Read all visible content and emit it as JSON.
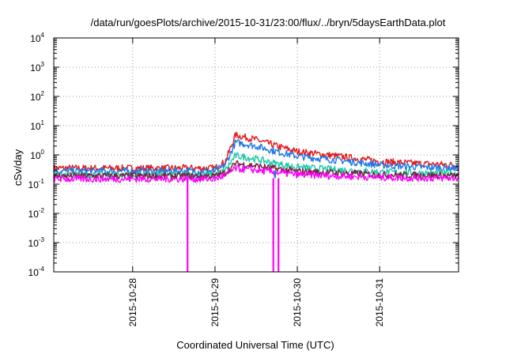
{
  "chart_data": {
    "type": "line",
    "title": "/data/run/goesPlots/archive/2015-10-31/23:00/flux/../bryn/5daysEarthData.plot",
    "xlabel": "Coordinated Universal Time (UTC)",
    "ylabel": "cSv/day",
    "yscale": "log",
    "ylim": [
      0.0001,
      10000
    ],
    "y_ticks": [
      {
        "base": "10",
        "exp": "-4",
        "value": 0.0001
      },
      {
        "base": "10",
        "exp": "-3",
        "value": 0.001
      },
      {
        "base": "10",
        "exp": "-2",
        "value": 0.01
      },
      {
        "base": "10",
        "exp": "-1",
        "value": 0.1
      },
      {
        "base": "10",
        "exp": "0",
        "value": 1
      },
      {
        "base": "10",
        "exp": "1",
        "value": 10
      },
      {
        "base": "10",
        "exp": "2",
        "value": 100
      },
      {
        "base": "10",
        "exp": "3",
        "value": 1000
      },
      {
        "base": "10",
        "exp": "4",
        "value": 10000
      }
    ],
    "xlim": [
      "2015-10-27 01:00",
      "2015-10-31 23:00"
    ],
    "x_ticks": [
      "2015-10-28",
      "2015-10-29",
      "2015-10-30",
      "2015-10-31"
    ],
    "grid": true,
    "legend": "none",
    "series": [
      {
        "color": "#e41a1c",
        "x": [
          "2015-10-27 01:00",
          "2015-10-28 00:00",
          "2015-10-29 00:00",
          "2015-10-29 03:00",
          "2015-10-29 06:00",
          "2015-10-29 12:00",
          "2015-10-29 18:00",
          "2015-10-30 00:00",
          "2015-10-30 12:00",
          "2015-10-31 00:00",
          "2015-10-31 12:00",
          "2015-10-31 23:00"
        ],
        "values": [
          0.35,
          0.35,
          0.35,
          0.6,
          4.8,
          3.3,
          2.0,
          1.3,
          0.9,
          0.6,
          0.5,
          0.45
        ]
      },
      {
        "color": "#1f78e8",
        "x": [
          "2015-10-27 01:00",
          "2015-10-28 00:00",
          "2015-10-29 00:00",
          "2015-10-29 03:00",
          "2015-10-29 06:00",
          "2015-10-29 12:00",
          "2015-10-29 18:00",
          "2015-10-30 00:00",
          "2015-10-30 12:00",
          "2015-10-31 00:00",
          "2015-10-31 12:00",
          "2015-10-31 23:00"
        ],
        "values": [
          0.28,
          0.28,
          0.28,
          0.45,
          2.7,
          2.0,
          1.3,
          0.9,
          0.65,
          0.45,
          0.38,
          0.35
        ]
      },
      {
        "color": "#1dc9a4",
        "x": [
          "2015-10-27 01:00",
          "2015-10-28 00:00",
          "2015-10-29 00:00",
          "2015-10-29 03:00",
          "2015-10-29 06:00",
          "2015-10-29 12:00",
          "2015-10-29 18:00",
          "2015-10-30 00:00",
          "2015-10-30 12:00",
          "2015-10-31 00:00",
          "2015-10-31 12:00",
          "2015-10-31 23:00"
        ],
        "values": [
          0.21,
          0.21,
          0.21,
          0.3,
          0.95,
          0.72,
          0.5,
          0.38,
          0.31,
          0.26,
          0.24,
          0.23
        ]
      },
      {
        "color": "#7a1f3f",
        "x": [
          "2015-10-27 01:00",
          "2015-10-28 00:00",
          "2015-10-29 00:00",
          "2015-10-29 03:00",
          "2015-10-29 06:00",
          "2015-10-29 12:00",
          "2015-10-29 18:00",
          "2015-10-30 00:00",
          "2015-10-30 12:00",
          "2015-10-31 00:00",
          "2015-10-31 12:00",
          "2015-10-31 23:00"
        ],
        "values": [
          0.19,
          0.19,
          0.19,
          0.24,
          0.5,
          0.42,
          0.33,
          0.27,
          0.24,
          0.21,
          0.2,
          0.19
        ]
      },
      {
        "color": "#ff00ff",
        "x": [
          "2015-10-27 01:00",
          "2015-10-28 00:00",
          "2015-10-29 00:00",
          "2015-10-29 03:00",
          "2015-10-29 06:00",
          "2015-10-29 12:00",
          "2015-10-29 18:00",
          "2015-10-30 00:00",
          "2015-10-30 12:00",
          "2015-10-31 00:00",
          "2015-10-31 12:00",
          "2015-10-31 23:00"
        ],
        "values": [
          0.15,
          0.15,
          0.15,
          0.2,
          0.34,
          0.3,
          0.25,
          0.21,
          0.19,
          0.17,
          0.16,
          0.16
        ]
      }
    ],
    "dropouts": [
      {
        "color": "#ff00ff",
        "x": [
          "2015-10-28 16:00"
        ],
        "value": 0.0001
      },
      {
        "color": "#ff00ff",
        "x": [
          "2015-10-29 17:00",
          "2015-10-29 18:30"
        ],
        "value": 0.0001
      },
      {
        "color": "#1f78e8",
        "x": [
          "2015-10-29 17:30"
        ],
        "value": 0.3
      }
    ]
  }
}
